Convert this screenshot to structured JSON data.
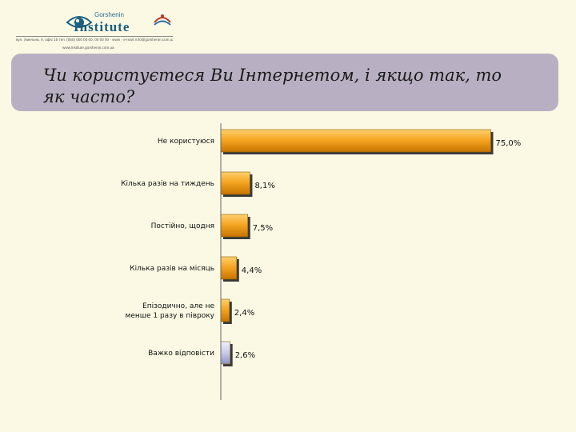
{
  "header": {
    "logo_small": "Gorshenin",
    "logo_big": "Institute",
    "address": "вул. Хмельна, 9, офіс 15  тел. (050) 000 00 00, 00 00 00  ·  www  ·  e-mail: info@gorshenin.com.ua",
    "website": "www.institute.gorshenin.com.ua",
    "brand_color": "#1c5f80"
  },
  "slide": {
    "title": "Чи користуєтеся Ви Інтернетом, і якщо так, то як часто?"
  },
  "chart_data": {
    "type": "bar",
    "orientation": "horizontal",
    "categories": [
      "Не користуюся",
      "Кілька разів на тиждень",
      "Постійно, щодня",
      "Кілька разів на місяць",
      "Епізодично, але не менше 1 разу в півроку",
      "Важко відповісти"
    ],
    "values": [
      75.0,
      8.1,
      7.5,
      4.4,
      2.4,
      2.6
    ],
    "value_labels": [
      "75,0%",
      "8,1%",
      "7,5%",
      "4,4%",
      "2,4%",
      "2,6%"
    ],
    "bar_colors": [
      "#f0a020",
      "#f0a020",
      "#f0a020",
      "#f0a020",
      "#f0a020",
      "#c8cae8"
    ],
    "xlim": [
      0,
      100
    ],
    "grid": false,
    "legend": "none"
  }
}
